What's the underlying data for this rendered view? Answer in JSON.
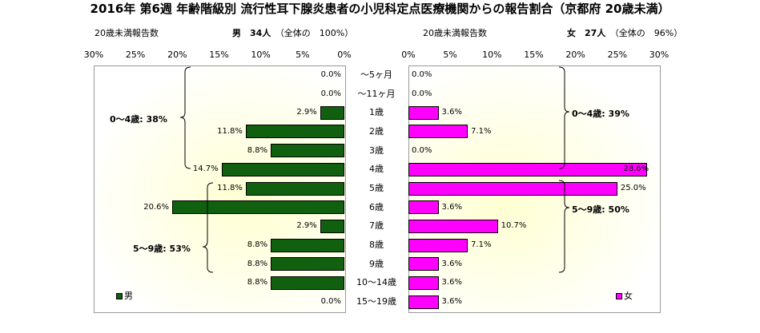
{
  "title": "2016年 第6週 年齢階級別 流行性耳下腺炎患者の小児科定点医療機関からの報告割合（京都府 20歳未満）",
  "header": {
    "left_sub": "20歳未満報告数",
    "right_sub": "20歳未満報告数",
    "male_summary": "男　34人",
    "male_total": "（全体の　100%）",
    "female_summary": "女　27人",
    "female_total": "（全体の　96%）"
  },
  "legend": {
    "male": "男",
    "female": "女",
    "male_color": "#106010",
    "female_color": "#ff00ff"
  },
  "groups": {
    "male_0_4": "0～4歳: 38%",
    "male_5_9": "5～9歳: 53%",
    "female_0_4": "0～4歳: 39%",
    "female_5_9": "5～9歳: 50%"
  },
  "chart_data": {
    "type": "bar",
    "orientation": "horizontal-butterfly",
    "xlim": [
      0,
      30
    ],
    "left_ticks": [
      "30%",
      "25%",
      "20%",
      "15%",
      "10%",
      "5%",
      "0%"
    ],
    "right_ticks": [
      "0%",
      "5%",
      "10%",
      "15%",
      "20%",
      "25%",
      "30%"
    ],
    "categories": [
      "～5ヶ月",
      "～11ヶ月",
      "1歳",
      "2歳",
      "3歳",
      "4歳",
      "5歳",
      "6歳",
      "7歳",
      "8歳",
      "9歳",
      "10～14歳",
      "15～19歳"
    ],
    "series": [
      {
        "name": "男",
        "values": [
          0.0,
          0.0,
          2.9,
          11.8,
          8.8,
          14.7,
          11.8,
          20.6,
          2.9,
          8.8,
          8.8,
          8.8,
          0.0
        ],
        "labels": [
          "0.0%",
          "0.0%",
          "2.9%",
          "11.8%",
          "8.8%",
          "14.7%",
          "11.8%",
          "20.6%",
          "2.9%",
          "8.8%",
          "8.8%",
          "8.8%",
          "0.0%"
        ]
      },
      {
        "name": "女",
        "values": [
          0.0,
          0.0,
          3.6,
          7.1,
          0.0,
          28.6,
          25.0,
          3.6,
          10.7,
          7.1,
          3.6,
          3.6,
          3.6
        ],
        "labels": [
          "0.0%",
          "0.0%",
          "3.6%",
          "7.1%",
          "0.0%",
          "28.6%",
          "25.0%",
          "3.6%",
          "10.7%",
          "7.1%",
          "3.6%",
          "3.6%",
          "3.6%"
        ]
      }
    ]
  }
}
